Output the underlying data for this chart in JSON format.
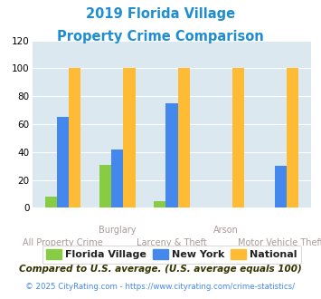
{
  "title_line1": "2019 Florida Village",
  "title_line2": "Property Crime Comparison",
  "title_color": "#1e8dd2",
  "categories": [
    "All Property Crime",
    "Burglary",
    "Larceny & Theft",
    "Arson",
    "Motor Vehicle Theft"
  ],
  "top_labels": [
    "",
    "Burglary",
    "",
    "Arson",
    ""
  ],
  "bottom_labels": [
    "All Property Crime",
    "",
    "Larceny & Theft",
    "",
    "Motor Vehicle Theft"
  ],
  "florida_village": [
    8,
    31,
    5,
    0,
    0
  ],
  "new_york": [
    65,
    42,
    75,
    0,
    30
  ],
  "national": [
    100,
    100,
    100,
    100,
    100
  ],
  "florida_village_color": "#88cc44",
  "new_york_color": "#4488ee",
  "national_color": "#ffbb33",
  "ylim": [
    0,
    120
  ],
  "yticks": [
    0,
    20,
    40,
    60,
    80,
    100,
    120
  ],
  "legend_labels": [
    "Florida Village",
    "New York",
    "National"
  ],
  "footnote1": "Compared to U.S. average. (U.S. average equals 100)",
  "footnote2": "© 2025 CityRating.com - https://www.cityrating.com/crime-statistics/",
  "footnote1_color": "#333300",
  "footnote2_color": "#4488ee",
  "bg_color": "#dce8f0",
  "fig_bg_color": "#ffffff",
  "label_color": "#aa9999",
  "grid_color": "#ffffff",
  "bar_width": 0.22
}
